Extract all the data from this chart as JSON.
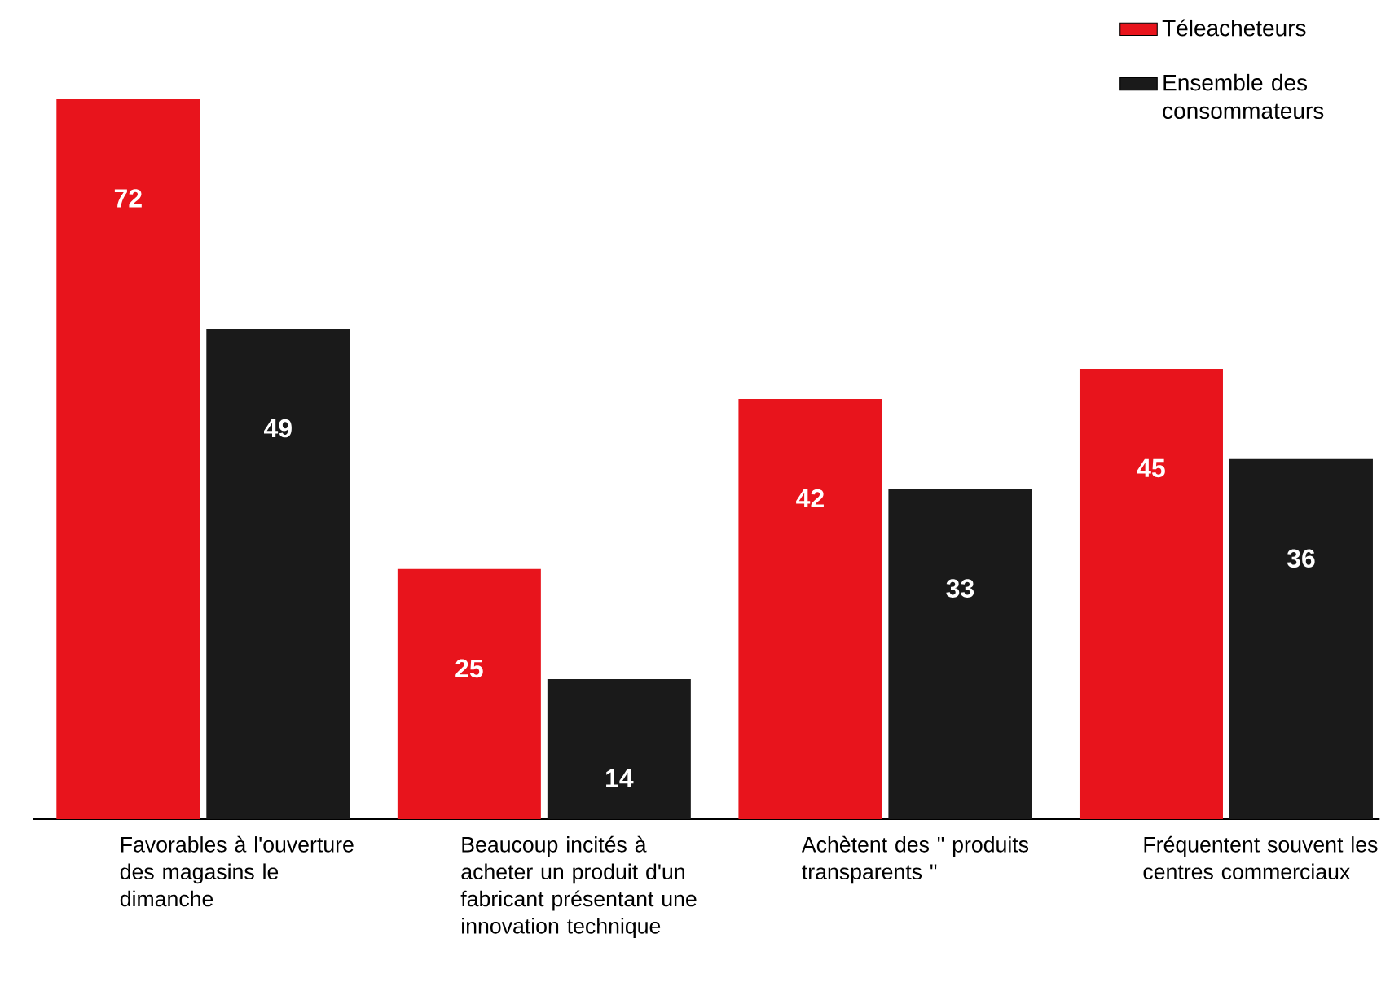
{
  "chart_data": {
    "type": "bar",
    "categories": [
      "Favorables à l'ouverture des magasins le dimanche",
      "Beaucoup incités à acheter un produit d'un fabricant présentant une innovation technique",
      "Achètent des \" produits transparents \"",
      "Fréquentent souvent les centres commerciaux"
    ],
    "series": [
      {
        "name": "Téleacheteurs",
        "color": "#e8141c",
        "values": [
          72,
          25,
          42,
          45
        ]
      },
      {
        "name": "Ensemble des consommateurs",
        "color": "#1a1a1a",
        "values": [
          49,
          14,
          33,
          36
        ]
      }
    ],
    "data_labels": true,
    "legend": "top right"
  }
}
